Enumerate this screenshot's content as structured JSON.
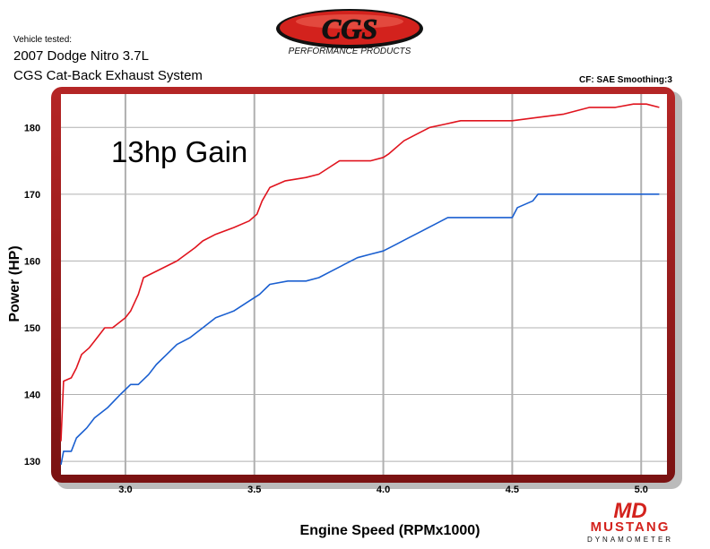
{
  "header": {
    "vehicle_label": "Vehicle tested:",
    "vehicle_line1": "2007 Dodge Nitro 3.7L",
    "vehicle_line2": "CGS Cat-Back Exhaust System",
    "correction": "CF: SAE Smoothing:3"
  },
  "brand": {
    "cgs_logo_text": "CGS",
    "cgs_tagline": "PERFORMANCE PRODUCTS",
    "dyno_logo_mark": "MD",
    "dyno_logo_name": "MUSTANG",
    "dyno_logo_sub": "DYNAMOMETER"
  },
  "colors": {
    "after": "#e0141e",
    "before": "#1a5fd0",
    "frame": "#9e1b1b",
    "grid": "#b0b0b0"
  },
  "chart_data": {
    "type": "line",
    "title": "",
    "annotation": "13hp Gain",
    "xlabel": "Engine Speed (RPMx1000)",
    "ylabel": "Power (HP)",
    "xlim": [
      2.75,
      5.1
    ],
    "ylim": [
      128,
      185
    ],
    "xticks": [
      3.0,
      3.5,
      4.0,
      4.5,
      5.0
    ],
    "xtick_labels": [
      "3.0",
      "3.5",
      "4.0",
      "4.5",
      "5.0"
    ],
    "yticks": [
      130,
      140,
      150,
      160,
      170,
      180
    ],
    "ytick_labels": [
      "130",
      "140",
      "150",
      "160",
      "170",
      "180"
    ],
    "grid": true,
    "legend": "none",
    "series": [
      {
        "color_key": "after",
        "x": [
          2.75,
          2.76,
          2.79,
          2.81,
          2.83,
          2.86,
          2.88,
          2.92,
          2.95,
          3.0,
          3.02,
          3.05,
          3.07,
          3.2,
          3.27,
          3.3,
          3.35,
          3.42,
          3.48,
          3.51,
          3.53,
          3.56,
          3.62,
          3.7,
          3.75,
          3.79,
          3.83,
          3.87,
          3.95,
          4.0,
          4.02,
          4.08,
          4.13,
          4.18,
          4.24,
          4.3,
          4.4,
          4.5,
          4.6,
          4.7,
          4.75,
          4.8,
          4.9,
          4.97,
          5.02,
          5.07
        ],
        "values": [
          133,
          142,
          142.5,
          144,
          146,
          147,
          148,
          150,
          150,
          151.5,
          152.5,
          155,
          157.5,
          160,
          162,
          163,
          164,
          165,
          166,
          167,
          169,
          171,
          172,
          172.5,
          173,
          174,
          175,
          175,
          175,
          175.5,
          176,
          178,
          179,
          180,
          180.5,
          181,
          181,
          181,
          181.5,
          182,
          182.5,
          183,
          183,
          183.5,
          183.5,
          183
        ]
      },
      {
        "color_key": "before",
        "x": [
          2.75,
          2.76,
          2.79,
          2.81,
          2.85,
          2.88,
          2.93,
          2.98,
          3.02,
          3.05,
          3.09,
          3.12,
          3.16,
          3.2,
          3.25,
          3.3,
          3.35,
          3.42,
          3.48,
          3.52,
          3.56,
          3.63,
          3.7,
          3.75,
          3.8,
          3.85,
          3.9,
          3.95,
          4.0,
          4.05,
          4.1,
          4.15,
          4.2,
          4.25,
          4.35,
          4.45,
          4.5,
          4.52,
          4.58,
          4.6,
          4.7,
          4.8,
          4.9,
          5.0,
          5.07
        ],
        "values": [
          129.5,
          131.5,
          131.5,
          133.5,
          135,
          136.5,
          138,
          140,
          141.5,
          141.5,
          143,
          144.5,
          146,
          147.5,
          148.5,
          150,
          151.5,
          152.5,
          154,
          155,
          156.5,
          157,
          157,
          157.5,
          158.5,
          159.5,
          160.5,
          161,
          161.5,
          162.5,
          163.5,
          164.5,
          165.5,
          166.5,
          166.5,
          166.5,
          166.5,
          168,
          169,
          170,
          170,
          170,
          170,
          170,
          170
        ]
      }
    ]
  }
}
